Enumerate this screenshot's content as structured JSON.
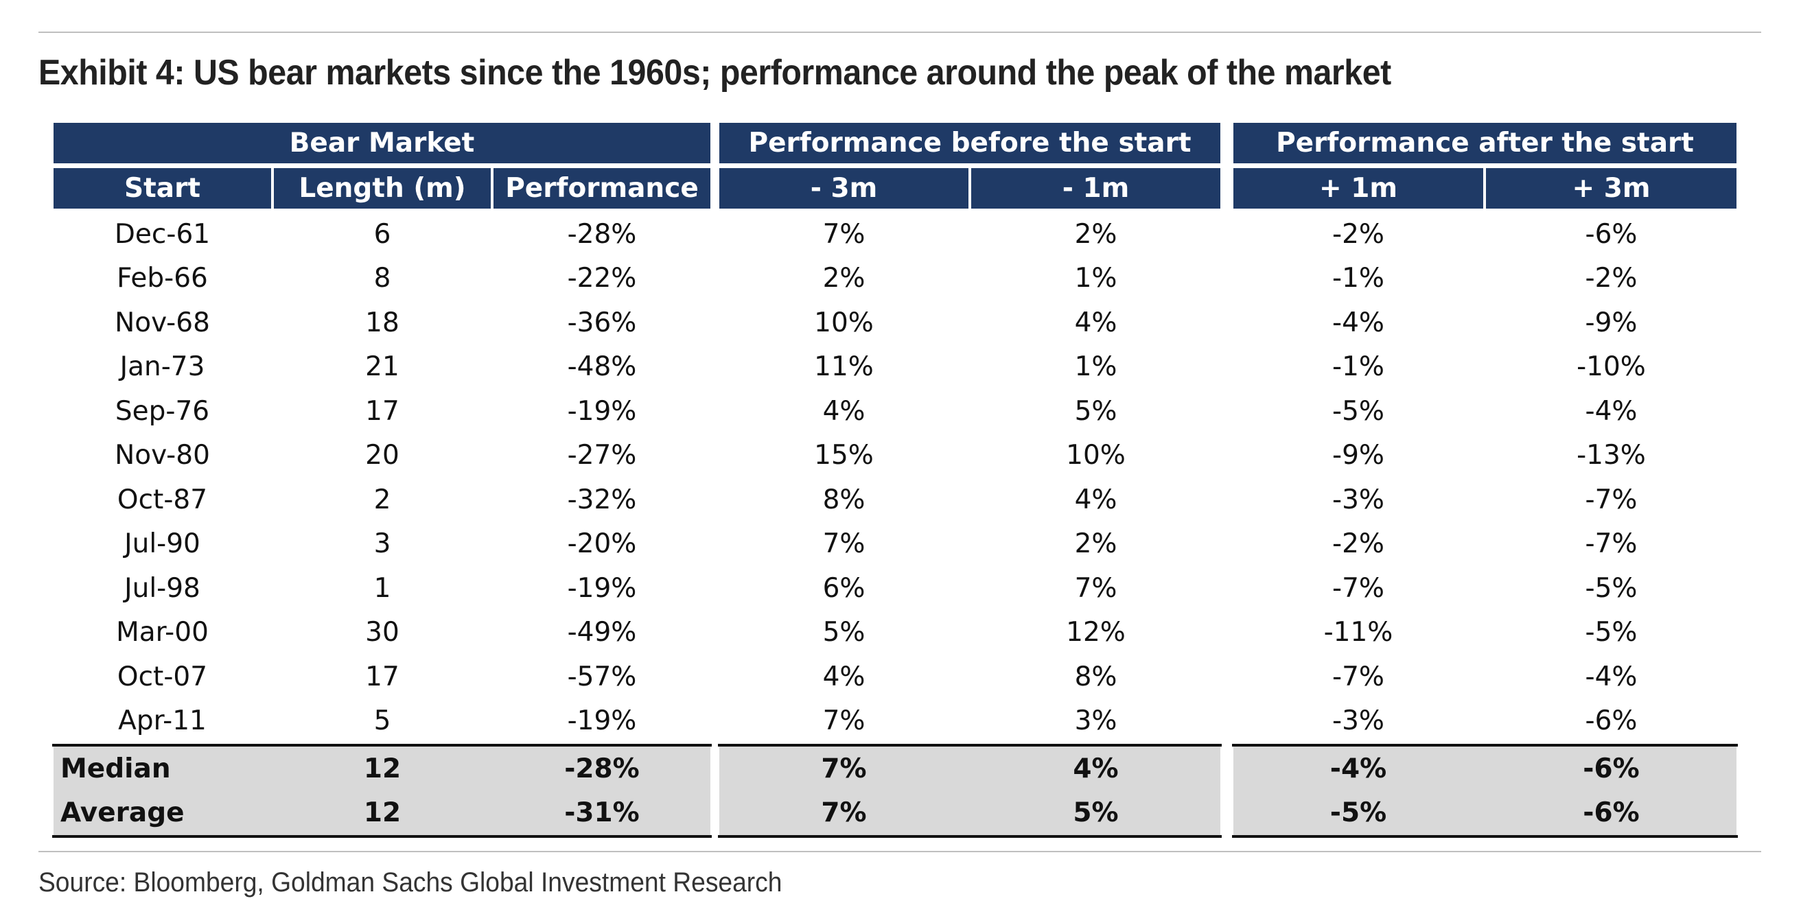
{
  "title": "Exhibit 4: US bear markets since the 1960s; performance around the peak of the market",
  "source": "Source: Bloomberg, Goldman Sachs Global Investment Research",
  "chart_data": {
    "type": "table",
    "title": "Exhibit 4: US bear markets since the 1960s; performance around the peak of the market",
    "group_headers": [
      "Bear Market",
      "Performance before the start",
      "Performance after the start"
    ],
    "columns": [
      "Start",
      "Length (m)",
      "Performance",
      "- 3m",
      "- 1m",
      "+ 1m",
      "+ 3m"
    ],
    "rows": [
      [
        "Dec-61",
        "6",
        "-28%",
        "7%",
        "2%",
        "-2%",
        "-6%"
      ],
      [
        "Feb-66",
        "8",
        "-22%",
        "2%",
        "1%",
        "-1%",
        "-2%"
      ],
      [
        "Nov-68",
        "18",
        "-36%",
        "10%",
        "4%",
        "-4%",
        "-9%"
      ],
      [
        "Jan-73",
        "21",
        "-48%",
        "11%",
        "1%",
        "-1%",
        "-10%"
      ],
      [
        "Sep-76",
        "17",
        "-19%",
        "4%",
        "5%",
        "-5%",
        "-4%"
      ],
      [
        "Nov-80",
        "20",
        "-27%",
        "15%",
        "10%",
        "-9%",
        "-13%"
      ],
      [
        "Oct-87",
        "2",
        "-32%",
        "8%",
        "4%",
        "-3%",
        "-7%"
      ],
      [
        "Jul-90",
        "3",
        "-20%",
        "7%",
        "2%",
        "-2%",
        "-7%"
      ],
      [
        "Jul-98",
        "1",
        "-19%",
        "6%",
        "7%",
        "-7%",
        "-5%"
      ],
      [
        "Mar-00",
        "30",
        "-49%",
        "5%",
        "12%",
        "-11%",
        "-5%"
      ],
      [
        "Oct-07",
        "17",
        "-57%",
        "4%",
        "8%",
        "-7%",
        "-4%"
      ],
      [
        "Apr-11",
        "5",
        "-19%",
        "7%",
        "3%",
        "-3%",
        "-6%"
      ]
    ],
    "summary_rows": [
      [
        "Median",
        "12",
        "-28%",
        "7%",
        "4%",
        "-4%",
        "-6%"
      ],
      [
        "Average",
        "12",
        "-31%",
        "7%",
        "5%",
        "-5%",
        "-6%"
      ]
    ],
    "colors": {
      "header_bg": "#1f3a66",
      "header_text": "#ffffff",
      "summary_bg": "#d9d9d9"
    }
  }
}
